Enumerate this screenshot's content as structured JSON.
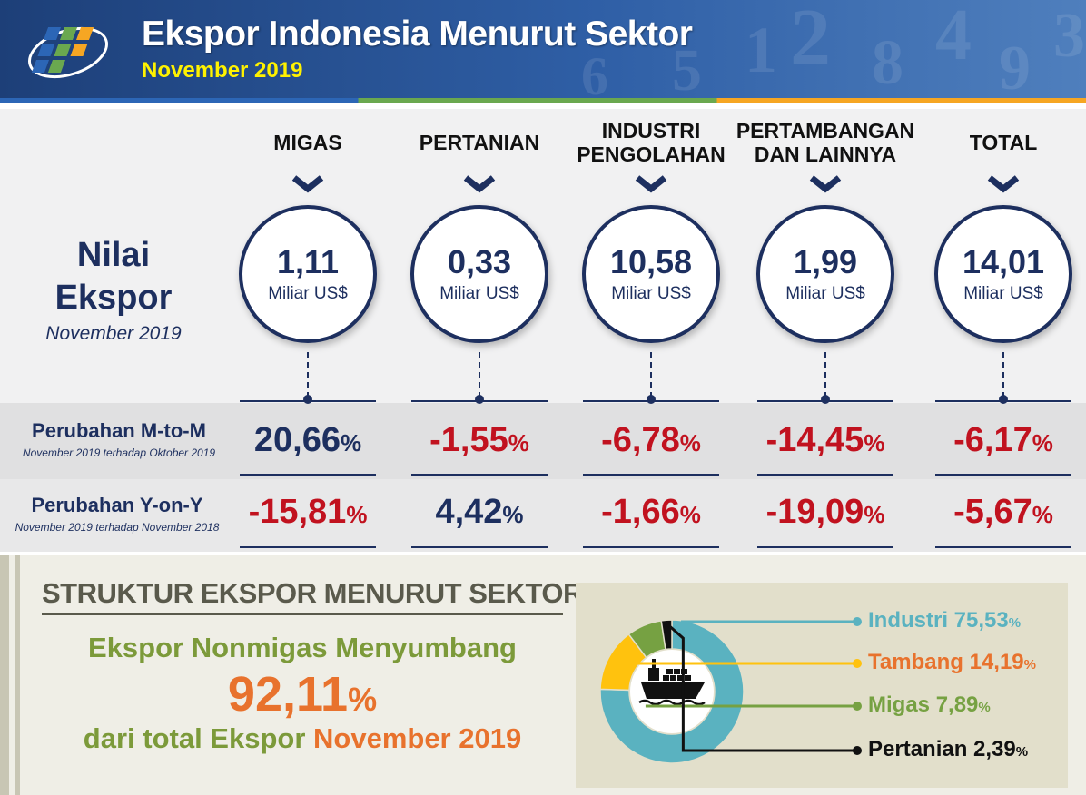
{
  "header": {
    "title": "Ekspor Indonesia Menurut Sektor",
    "subtitle": "November 2019",
    "logo_icon": "bps-logo-icon",
    "colors": {
      "title": "#ffffff",
      "subtitle": "#fff200",
      "background": "#2f5fa6"
    }
  },
  "nilai_ekspor": {
    "label_line1": "Nilai",
    "label_line2": "Ekspor",
    "period": "November 2019"
  },
  "mtom": {
    "label": "Perubahan M-to-M",
    "sublabel": "November 2019 terhadap Oktober 2019"
  },
  "yoy": {
    "label": "Perubahan Y-on-Y",
    "sublabel": "November 2019 terhadap November 2018"
  },
  "percent_symbol": "%",
  "sectors": [
    {
      "name": "MIGAS",
      "value": "1,11",
      "unit": "Miliar US$",
      "mtom": "20,66",
      "yoy": "-15,81"
    },
    {
      "name": "PERTANIAN",
      "value": "0,33",
      "unit": "Miliar US$",
      "mtom": "-1,55",
      "yoy": "4,42"
    },
    {
      "name": "INDUSTRI PENGOLAHAN",
      "value": "10,58",
      "unit": "Miliar US$",
      "mtom": "-6,78",
      "yoy": "-1,66"
    },
    {
      "name": "PERTAMBANGAN DAN LAINNYA",
      "value": "1,99",
      "unit": "Miliar US$",
      "mtom": "-14,45",
      "yoy": "-19,09"
    },
    {
      "name": "TOTAL",
      "value": "14,01",
      "unit": "Miliar US$",
      "mtom": "-6,17",
      "yoy": "-5,67"
    }
  ],
  "struktur": {
    "title": "STRUKTUR EKSPOR MENURUT SEKTOR",
    "line1": "Ekspor Nonmigas Menyumbang",
    "big_value": "92,11",
    "line3_prefix": "dari total Ekspor",
    "line3_highlight": "November 2019",
    "center_icon": "cargo-ship-icon"
  },
  "colors": {
    "navy": "#1d2f5f",
    "positive": "#1d2f5f",
    "negative": "#c1121f",
    "nonmigas_green": "#7c9a3a",
    "highlight_orange": "#e8722d"
  },
  "chart_data": {
    "type": "pie",
    "style": "donut",
    "title": "",
    "unit": "%",
    "series": [
      {
        "name": "Industri",
        "value": 75.53,
        "label": "75,53",
        "color": "#5ab2c0"
      },
      {
        "name": "Tambang",
        "value": 14.19,
        "label": "14,19",
        "color": "#ffc20e"
      },
      {
        "name": "Migas",
        "value": 7.89,
        "label": "7,89",
        "color": "#76a142"
      },
      {
        "name": "Pertanian",
        "value": 2.39,
        "label": "2,39",
        "color": "#111111"
      }
    ],
    "legend_placement": "right"
  }
}
